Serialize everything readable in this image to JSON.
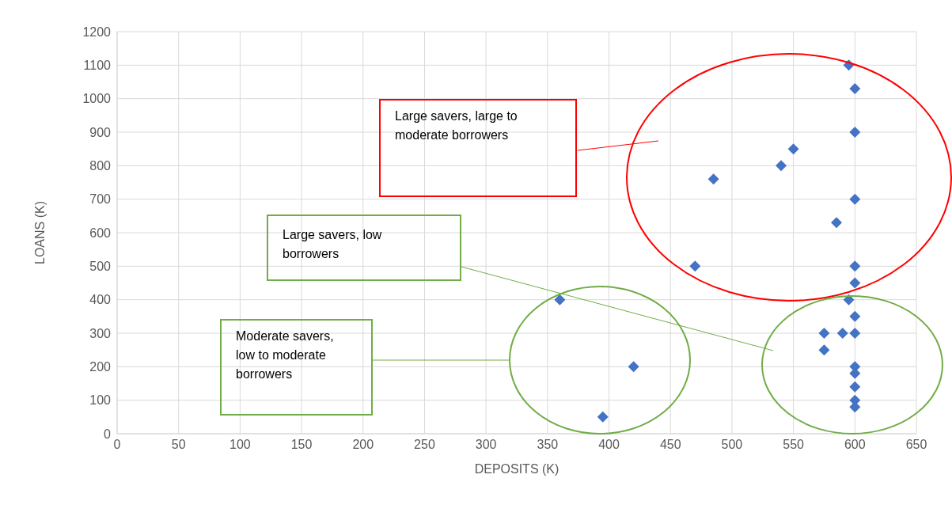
{
  "chart_data": {
    "type": "scatter",
    "xlabel": "DEPOSITS (K)",
    "ylabel": "LOANS (K)",
    "x": [
      595,
      600,
      600,
      550,
      540,
      485,
      600,
      585,
      470,
      600,
      600,
      360,
      595,
      600,
      575,
      590,
      600,
      575,
      420,
      600,
      600,
      600,
      600,
      600,
      395
    ],
    "values": [
      1100,
      1030,
      900,
      850,
      800,
      760,
      700,
      630,
      500,
      500,
      450,
      400,
      400,
      350,
      300,
      300,
      300,
      250,
      200,
      200,
      180,
      140,
      100,
      80,
      50
    ],
    "color": "#4472c4",
    "marker": "diamond",
    "xlim": [
      0,
      650
    ],
    "xticks": [
      0,
      50,
      100,
      150,
      200,
      250,
      300,
      350,
      400,
      450,
      500,
      550,
      600,
      650
    ],
    "ylim": [
      0,
      1200
    ],
    "yticks": [
      0,
      100,
      200,
      300,
      400,
      500,
      600,
      700,
      800,
      900,
      1000,
      1100,
      1200
    ],
    "grid": true,
    "annotations": [
      "Large savers, large to moderate borrowers",
      "Large savers, low borrowers",
      "Moderate savers, low to moderate borrowers"
    ]
  }
}
